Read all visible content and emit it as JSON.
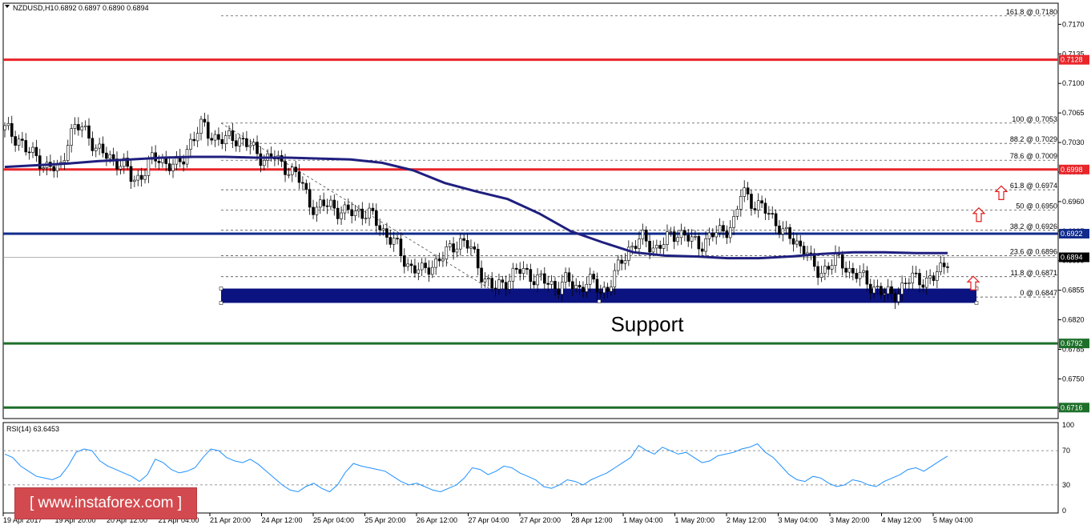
{
  "header": {
    "symbol": "NZDUSD,H1",
    "ohlc": "0.6892 0.6897 0.6890 0.6894"
  },
  "rsi": {
    "label": "RSI(14) 63.6453",
    "levels": [
      70,
      30
    ],
    "ticks": [
      "100",
      "70",
      "30",
      "0"
    ]
  },
  "watermark": "[  www.instaforex.com  ]",
  "support_label": "Support",
  "colors": {
    "red_line": "#e8262a",
    "navy_line": "#102b8c",
    "green_line": "#1e6f2a",
    "ma": "#1f1f7f",
    "support_box": "#0b1380",
    "arrow": "#e21d1d"
  },
  "chart_data": [
    {
      "type": "candlestick",
      "title": "NZDUSD,H1",
      "ylim": [
        0.6703,
        0.7195
      ],
      "y_ticks": [
        "0.7170",
        "0.7135",
        "0.7100",
        "0.7065",
        "0.7030",
        "0.6995",
        "0.6960",
        "0.6925",
        "0.6890",
        "0.6855",
        "0.6820",
        "0.6785",
        "0.6750",
        "0.6715"
      ],
      "x_labels": [
        "19 Apr 2017",
        "19 Apr 20:00",
        "20 Apr 12:00",
        "21 Apr 04:00",
        "21 Apr 20:00",
        "24 Apr 12:00",
        "25 Apr 04:00",
        "25 Apr 20:00",
        "26 Apr 12:00",
        "27 Apr 04:00",
        "27 Apr 20:00",
        "28 Apr 12:00",
        "1 May 04:00",
        "1 May 20:00",
        "2 May 12:00",
        "3 May 04:00",
        "3 May 20:00",
        "4 May 12:00",
        "5 May 04:00"
      ],
      "close_path": [
        0.7045,
        0.704,
        0.7035,
        0.702,
        0.7015,
        0.701,
        0.7,
        0.6998,
        0.7002,
        0.704,
        0.7045,
        0.7048,
        0.7038,
        0.702,
        0.7015,
        0.7012,
        0.7008,
        0.7,
        0.6985,
        0.699,
        0.7,
        0.701,
        0.7012,
        0.7005,
        0.7,
        0.7008,
        0.703,
        0.704,
        0.705,
        0.704,
        0.7035,
        0.703,
        0.7038,
        0.7035,
        0.7028,
        0.7022,
        0.7015,
        0.701,
        0.7012,
        0.7005,
        0.7,
        0.699,
        0.698,
        0.696,
        0.695,
        0.6955,
        0.6958,
        0.695,
        0.6945,
        0.6948,
        0.695,
        0.6945,
        0.694,
        0.693,
        0.692,
        0.691,
        0.6895,
        0.6885,
        0.688,
        0.6875,
        0.6885,
        0.689,
        0.6895,
        0.6905,
        0.6915,
        0.691,
        0.69,
        0.688,
        0.6865,
        0.6855,
        0.6862,
        0.687,
        0.6875,
        0.6878,
        0.6875,
        0.6868,
        0.6865,
        0.6862,
        0.686,
        0.6865,
        0.6862,
        0.6858,
        0.6865,
        0.6862,
        0.6855,
        0.6858,
        0.687,
        0.689,
        0.6905,
        0.691,
        0.6915,
        0.691,
        0.6905,
        0.691,
        0.692,
        0.6925,
        0.6918,
        0.6912,
        0.691,
        0.6915,
        0.692,
        0.6925,
        0.693,
        0.6935,
        0.6975,
        0.6965,
        0.6955,
        0.695,
        0.6945,
        0.6935,
        0.692,
        0.6915,
        0.691,
        0.6905,
        0.688,
        0.6875,
        0.6885,
        0.689,
        0.6888,
        0.688,
        0.6875,
        0.6868,
        0.6862,
        0.6858,
        0.685,
        0.6848,
        0.6855,
        0.6862,
        0.6868,
        0.687,
        0.6866,
        0.6868,
        0.688,
        0.6894
      ],
      "ma_path": [
        0.7001,
        0.7003,
        0.7005,
        0.7008,
        0.701,
        0.7012,
        0.7013,
        0.7013,
        0.7012,
        0.7012,
        0.7011,
        0.701,
        0.7006,
        0.6997,
        0.6982,
        0.6972,
        0.6963,
        0.6946,
        0.6925,
        0.6912,
        0.69,
        0.6896,
        0.6895,
        0.6893,
        0.6893,
        0.6895,
        0.6898,
        0.69,
        0.69,
        0.6899,
        0.6899
      ],
      "horizontal_levels": [
        {
          "value": "0.7128",
          "color": "#e8262a"
        },
        {
          "value": "0.6998",
          "color": "#e8262a"
        },
        {
          "value": "0.6922",
          "color": "#102b8c"
        },
        {
          "value": "0.6792",
          "color": "#1e6f2a"
        },
        {
          "value": "0.6716",
          "color": "#1e6f2a"
        }
      ],
      "current_price": "0.6894",
      "fibonacci": [
        {
          "label": "161.8 @ 0.7180",
          "value": 0.718
        },
        {
          "label": "100 @ 0.7053",
          "value": 0.7053
        },
        {
          "label": "88.2 @ 0.7029",
          "value": 0.7029
        },
        {
          "label": "78.6 @ 0.7009",
          "value": 0.7009
        },
        {
          "label": "61.8 @ 0.6974",
          "value": 0.6974
        },
        {
          "label": "50 @ 0.6950",
          "value": 0.695
        },
        {
          "label": "38.2 @ 0.6926",
          "value": 0.6926
        },
        {
          "label": "23.6 @ 0.6896",
          "value": 0.6896
        },
        {
          "label": "11.8 @ 0.6871",
          "value": 0.6871
        },
        {
          "label": "0 @ 0.6847",
          "value": 0.6847
        }
      ],
      "support_zone": [
        0.684,
        0.6857
      ]
    },
    {
      "type": "line",
      "title": "RSI(14) 63.6453",
      "ylim": [
        0,
        100
      ],
      "values": [
        66,
        62,
        52,
        46,
        40,
        38,
        36,
        40,
        52,
        68,
        72,
        70,
        58,
        52,
        48,
        44,
        40,
        34,
        42,
        60,
        56,
        48,
        44,
        46,
        50,
        62,
        72,
        70,
        62,
        58,
        56,
        60,
        54,
        46,
        38,
        30,
        24,
        22,
        28,
        32,
        26,
        22,
        30,
        45,
        55,
        52,
        50,
        48,
        46,
        40,
        34,
        30,
        32,
        28,
        24,
        22,
        26,
        30,
        38,
        50,
        48,
        42,
        46,
        52,
        50,
        44,
        40,
        36,
        28,
        26,
        30,
        36,
        34,
        30,
        36,
        40,
        44,
        50,
        56,
        62,
        76,
        70,
        66,
        74,
        70,
        66,
        68,
        62,
        56,
        58,
        64,
        66,
        68,
        72,
        74,
        78,
        68,
        62,
        52,
        42,
        36,
        34,
        40,
        38,
        32,
        28,
        30,
        36,
        34,
        30,
        28,
        34,
        38,
        42,
        48,
        50,
        46,
        52,
        58,
        63.6
      ]
    }
  ]
}
